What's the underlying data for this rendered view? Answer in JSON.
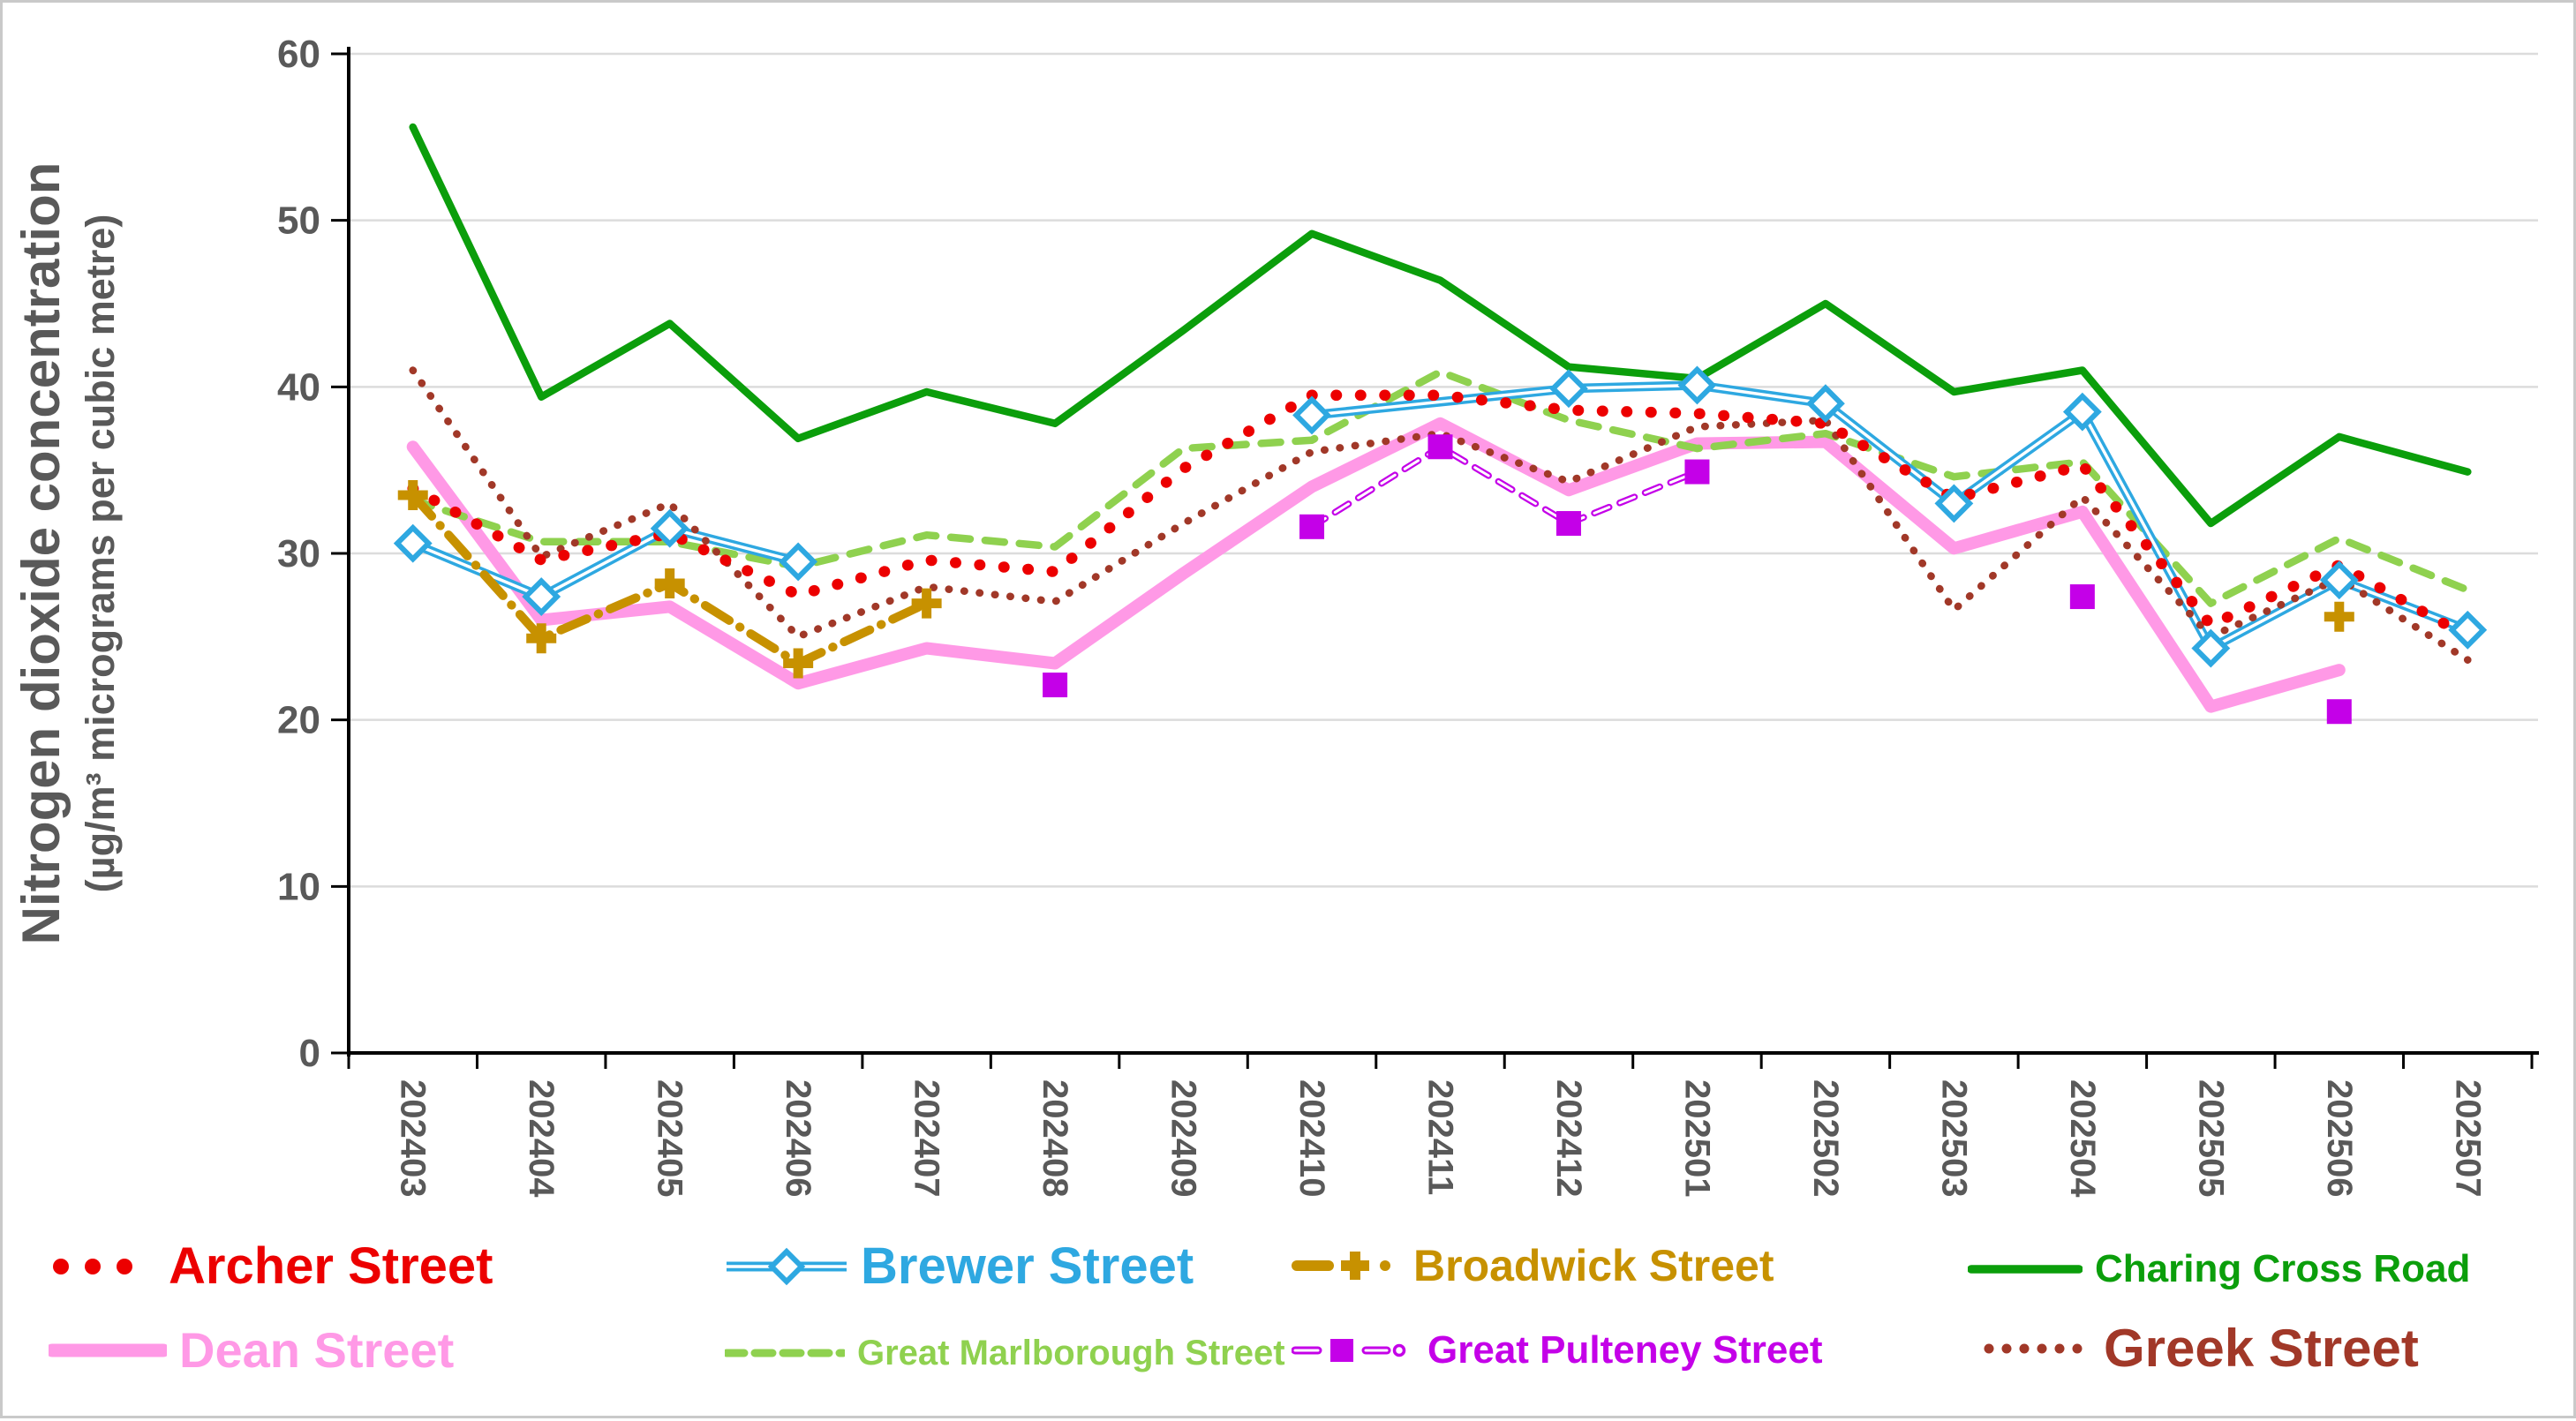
{
  "chart_data": {
    "type": "line",
    "title": "",
    "ylabel": "Nitrogen dioxide concentration",
    "ylabel_sub": "(µg/m³ micrograms per cubic metre)",
    "xlabel": "",
    "ylim": [
      0,
      60
    ],
    "yticks": [
      0,
      10,
      20,
      30,
      40,
      50,
      60
    ],
    "grid": "horizontal",
    "legend_position": "bottom",
    "tick_label_color": "#595959",
    "grid_color": "#DCDCDC",
    "categories": [
      "202403",
      "202404",
      "202405",
      "202406",
      "202407",
      "202408",
      "202409",
      "202410",
      "202411",
      "202412",
      "202501",
      "202502",
      "202503",
      "202504",
      "202505",
      "202506",
      "202507"
    ],
    "series": [
      {
        "name": "Archer Street",
        "color": "#EC0000",
        "style": "dot",
        "width": 12.5,
        "marker": "none",
        "bridge": 0,
        "values": [
          33.9,
          29.6,
          31.2,
          27.5,
          29.6,
          28.9,
          35.1,
          39.5,
          39.5,
          38.6,
          38.4,
          37.8,
          33.3,
          35.3,
          25.7,
          29.3,
          25.0
        ]
      },
      {
        "name": "Brewer Street",
        "color": "#2EA8E1",
        "style": "double-solid",
        "width": 10.5,
        "marker": "diamond-open",
        "bridge": 1,
        "values": [
          30.6,
          27.4,
          31.5,
          29.5,
          null,
          null,
          null,
          38.3,
          null,
          39.9,
          40.1,
          39.0,
          33.0,
          38.5,
          24.3,
          28.4,
          25.4
        ]
      },
      {
        "name": "Broadwick Street",
        "color": "#C79100",
        "style": "dash-dot",
        "width": 10,
        "marker": "plus",
        "bridge": 0,
        "values": [
          33.5,
          24.9,
          28.2,
          23.4,
          27.0,
          null,
          null,
          null,
          null,
          null,
          null,
          null,
          null,
          null,
          null,
          26.2,
          null
        ]
      },
      {
        "name": "Charing Cross Road",
        "color": "#0B9E0B",
        "style": "solid",
        "width": 8.5,
        "marker": "none",
        "bridge": 0,
        "values": [
          55.6,
          39.4,
          43.8,
          36.9,
          39.7,
          37.8,
          43.4,
          49.2,
          46.4,
          41.2,
          40.5,
          45.0,
          39.7,
          41.0,
          31.8,
          37.0,
          34.9
        ]
      },
      {
        "name": "Dean Street",
        "color": "#FF99E6",
        "style": "solid",
        "width": 14,
        "marker": "none",
        "bridge": 0,
        "values": [
          36.4,
          26.0,
          26.8,
          22.2,
          24.3,
          23.4,
          28.8,
          34.0,
          37.8,
          33.8,
          36.6,
          36.7,
          30.3,
          32.5,
          20.8,
          23.0,
          null
        ]
      },
      {
        "name": "Great Marlborough Street",
        "color": "#8FD14F",
        "style": "dash",
        "width": 8.5,
        "marker": "none",
        "bridge": 0,
        "values": [
          33.2,
          30.7,
          30.7,
          29.2,
          31.1,
          30.4,
          36.3,
          36.8,
          40.9,
          38.0,
          36.3,
          37.2,
          34.6,
          35.5,
          27.0,
          30.9,
          27.8
        ]
      },
      {
        "name": "Great Pulteney Street",
        "color": "#C400E8",
        "style": "dash-open",
        "width": 7.5,
        "marker": "square",
        "bridge": 0,
        "values": [
          null,
          null,
          null,
          null,
          null,
          22.1,
          null,
          31.6,
          36.4,
          31.8,
          34.9,
          null,
          null,
          27.4,
          null,
          20.5,
          null
        ]
      },
      {
        "name": "Greek Street",
        "color": "#A13828",
        "style": "dot-small",
        "width": 8.5,
        "marker": "none",
        "bridge": 0,
        "values": [
          41.0,
          29.8,
          33.0,
          25.0,
          28.0,
          27.1,
          31.8,
          36.1,
          37.2,
          34.3,
          37.6,
          38.0,
          26.6,
          33.4,
          25.0,
          28.5,
          23.6
        ]
      }
    ]
  }
}
